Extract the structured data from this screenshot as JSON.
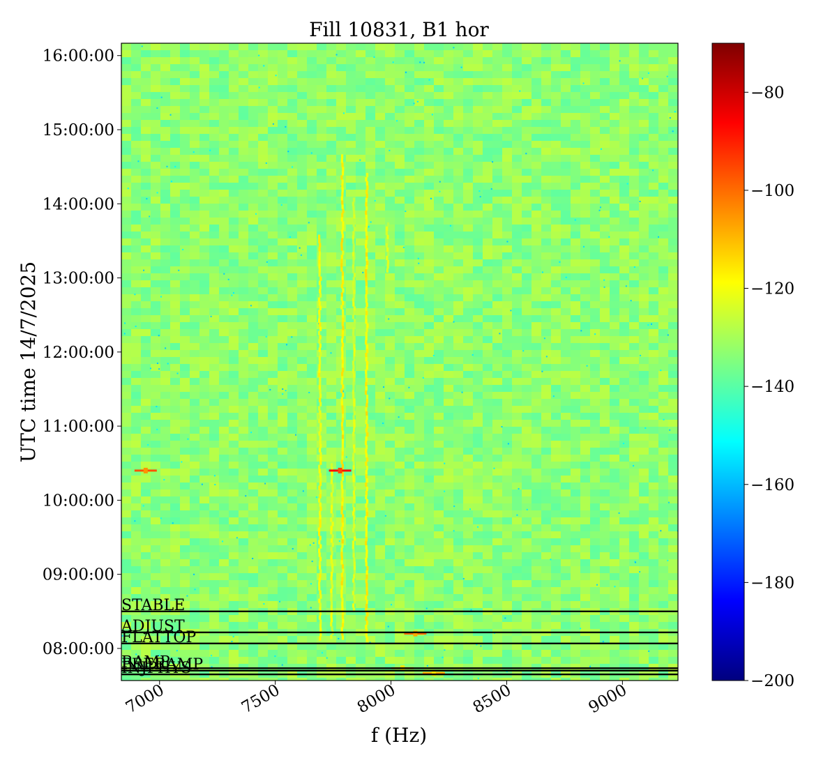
{
  "chart_data": {
    "type": "heatmap",
    "title": "Fill 10831, B1 hor",
    "xlabel": "f (Hz)",
    "ylabel": "UTC time 14/7/2025",
    "xlim": [
      6835,
      9240
    ],
    "ylim": [
      "07:34:00",
      "16:10:00"
    ],
    "x_ticks": [
      {
        "value": 7000,
        "label": "7000"
      },
      {
        "value": 7500,
        "label": "7500"
      },
      {
        "value": 8000,
        "label": "8000"
      },
      {
        "value": 8500,
        "label": "8500"
      },
      {
        "value": 9000,
        "label": "9000"
      }
    ],
    "y_ticks": [
      {
        "value": "08:00:00",
        "label": "08:00:00"
      },
      {
        "value": "09:00:00",
        "label": "09:00:00"
      },
      {
        "value": "10:00:00",
        "label": "10:00:00"
      },
      {
        "value": "11:00:00",
        "label": "11:00:00"
      },
      {
        "value": "12:00:00",
        "label": "12:00:00"
      },
      {
        "value": "13:00:00",
        "label": "13:00:00"
      },
      {
        "value": "14:00:00",
        "label": "14:00:00"
      },
      {
        "value": "15:00:00",
        "label": "15:00:00"
      },
      {
        "value": "16:00:00",
        "label": "16:00:00"
      }
    ],
    "colorbar": {
      "colormap": "jet",
      "range": [
        -200,
        -70
      ],
      "ticks": [
        {
          "value": -80,
          "label": "−80"
        },
        {
          "value": -100,
          "label": "−100"
        },
        {
          "value": -120,
          "label": "−120"
        },
        {
          "value": -140,
          "label": "−140"
        },
        {
          "value": -160,
          "label": "−160"
        },
        {
          "value": -180,
          "label": "−180"
        },
        {
          "value": -200,
          "label": "−200"
        }
      ]
    },
    "background_level": -133,
    "spectral_lines": [
      {
        "freq": 7693,
        "t_start": "08:09:00",
        "t_end": "13:35:00",
        "level": -120
      },
      {
        "freq": 7745,
        "t_start": "08:09:00",
        "t_end": "10:30:00",
        "level": -122
      },
      {
        "freq": 7790,
        "t_start": "08:09:00",
        "t_end": "14:40:00",
        "level": -118
      },
      {
        "freq": 7840,
        "t_start": "08:30:00",
        "t_end": "14:05:00",
        "level": -124
      },
      {
        "freq": 7895,
        "t_start": "08:09:00",
        "t_end": "14:25:00",
        "level": -118
      },
      {
        "freq": 7985,
        "t_start": "13:05:00",
        "t_end": "13:45:00",
        "level": -125
      }
    ],
    "hotspots": [
      {
        "freq": 7780,
        "time": "10:24:00",
        "level": -95
      },
      {
        "freq": 6940,
        "time": "10:24:00",
        "level": -105
      },
      {
        "freq": 8105,
        "time": "08:12:00",
        "level": -108
      },
      {
        "freq": 8050,
        "time": "07:44:00",
        "level": -115
      },
      {
        "freq": 8185,
        "time": "07:40:00",
        "level": -115
      }
    ],
    "annotations": [
      {
        "label": "STABLE",
        "time": "08:30:00"
      },
      {
        "label": "ADJUST",
        "time": "08:13:00"
      },
      {
        "label": "FLATTOP",
        "time": "08:04:00"
      },
      {
        "label": "RAMP",
        "time": "07:44:00"
      },
      {
        "label": "PRERAMP",
        "time": "07:42:00"
      },
      {
        "label": "INJPHYS",
        "time": "07:39:00"
      }
    ]
  }
}
